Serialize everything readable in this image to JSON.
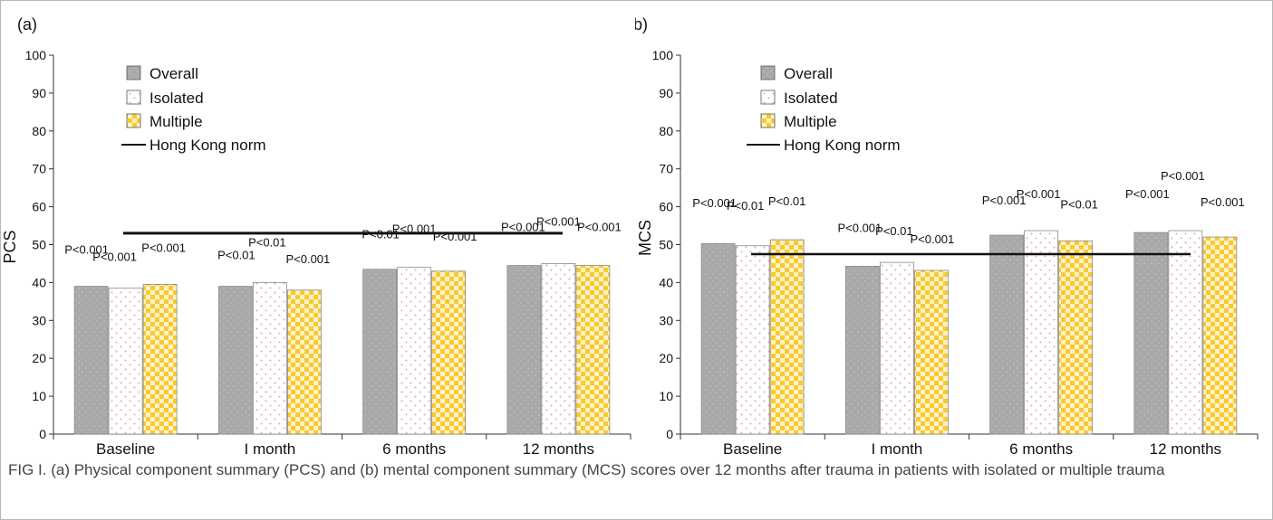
{
  "colors": {
    "overall": "#a9a9a9",
    "isolated_bg": "#ffffff",
    "isolated_dot": "#d9a8b4",
    "multiple_a": "#f9c92e",
    "multiple_b": "#fff2cc",
    "norm_line": "#111111"
  },
  "chart_data": [
    {
      "panel_label": "(a)",
      "type": "bar",
      "ylabel": "PCS",
      "ylim": [
        0,
        100
      ],
      "yticks": [
        0,
        10,
        20,
        30,
        40,
        50,
        60,
        70,
        80,
        90,
        100
      ],
      "categories": [
        "Baseline",
        "I month",
        "6 months",
        "12 months"
      ],
      "series": [
        {
          "name": "Overall",
          "values": [
            39,
            39,
            43.5,
            44.5
          ],
          "pvalues": [
            "P<0.001",
            "P<0.01",
            "P<0.01",
            "P<0.001"
          ]
        },
        {
          "name": "Isolated",
          "values": [
            38.5,
            40,
            44,
            45
          ],
          "pvalues": [
            "P<0.001",
            "P<0.01",
            "P<0.001",
            "P<0.001"
          ]
        },
        {
          "name": "Multiple",
          "values": [
            39.5,
            38,
            43,
            44.5
          ],
          "pvalues": [
            "P<0.001",
            "P<0.001",
            "P<0.001",
            "P<0.001"
          ]
        }
      ],
      "reference_line": {
        "name": "Hong Kong norm",
        "value": 53
      },
      "legend_position": "top-left"
    },
    {
      "panel_label": "(b)",
      "type": "bar",
      "ylabel": "MCS",
      "ylim": [
        0,
        100
      ],
      "yticks": [
        0,
        10,
        20,
        30,
        40,
        50,
        60,
        70,
        80,
        90,
        100
      ],
      "categories": [
        "Baseline",
        "I month",
        "6 months",
        "12 months"
      ],
      "series": [
        {
          "name": "Overall",
          "values": [
            50.3,
            44.3,
            52.5,
            53.2
          ],
          "pvalues": [
            "P<0.001",
            "P<0.001",
            "P<0.001",
            "P<0.001"
          ]
        },
        {
          "name": "Isolated",
          "values": [
            49.7,
            45.3,
            53.7,
            53.7
          ],
          "pvalues": [
            "P<0.01",
            "P<0.01",
            "P<0.001",
            "P<0.001"
          ]
        },
        {
          "name": "Multiple",
          "values": [
            51.3,
            43.2,
            51,
            52
          ],
          "pvalues": [
            "P<0.01",
            "P<0.001",
            "P<0.01",
            "P<0.001"
          ]
        }
      ],
      "reference_line": {
        "name": "Hong Kong norm",
        "value": 47.5
      },
      "legend_position": "top-left"
    }
  ],
  "caption": "FIG I.  (a) Physical component summary (PCS) and (b) mental component summary (MCS) scores over 12 months after trauma in patients with isolated or multiple trauma"
}
